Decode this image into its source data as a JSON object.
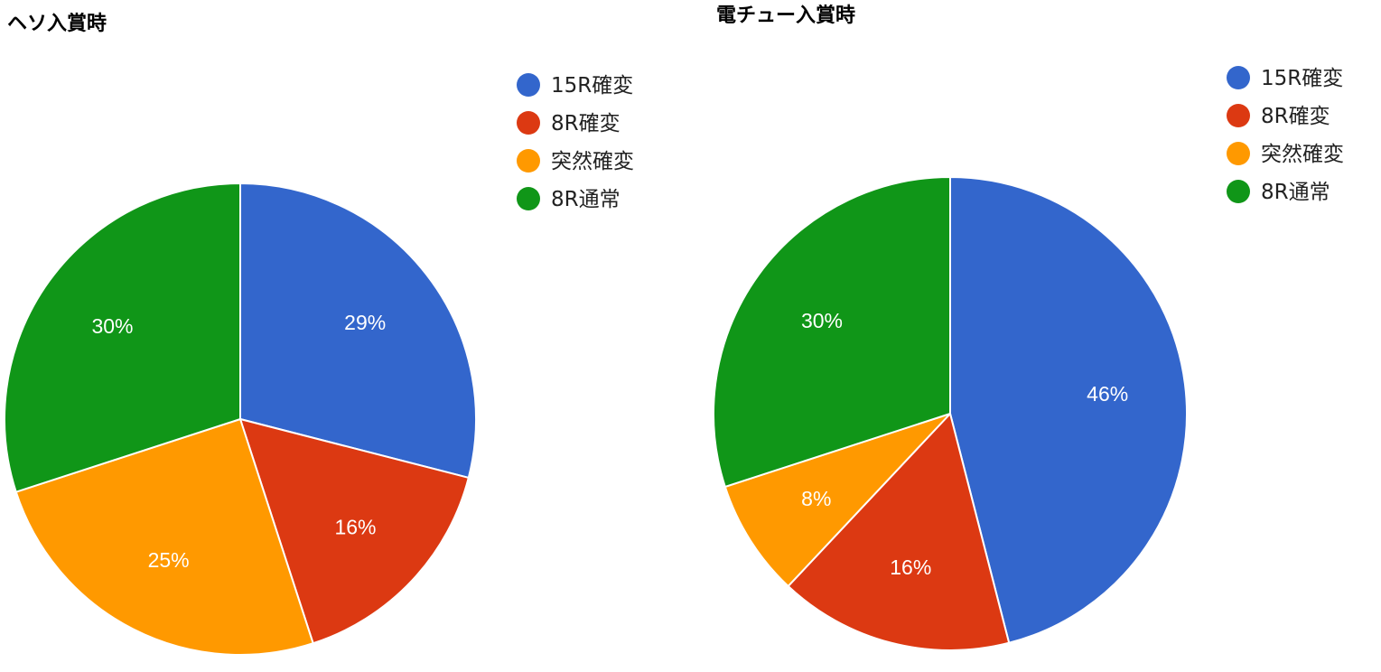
{
  "chart_data": [
    {
      "type": "pie",
      "title": "ヘソ入賞時",
      "legend_position": "right",
      "slices": [
        {
          "label": "15R確変",
          "value": 29,
          "display": "29%",
          "color": "#3366cc"
        },
        {
          "label": "8R確変",
          "value": 16,
          "display": "16%",
          "color": "#dc3912"
        },
        {
          "label": "突然確変",
          "value": 25,
          "display": "25%",
          "color": "#ff9900"
        },
        {
          "label": "8R通常",
          "value": 30,
          "display": "30%",
          "color": "#109618"
        }
      ]
    },
    {
      "type": "pie",
      "title": "電チュー入賞時",
      "legend_position": "right",
      "slices": [
        {
          "label": "15R確変",
          "value": 46,
          "display": "46%",
          "color": "#3366cc"
        },
        {
          "label": "8R確変",
          "value": 16,
          "display": "16%",
          "color": "#dc3912"
        },
        {
          "label": "突然確変",
          "value": 8,
          "display": "8%",
          "color": "#ff9900"
        },
        {
          "label": "8R通常",
          "value": 30,
          "display": "30%",
          "color": "#109618"
        }
      ]
    }
  ]
}
